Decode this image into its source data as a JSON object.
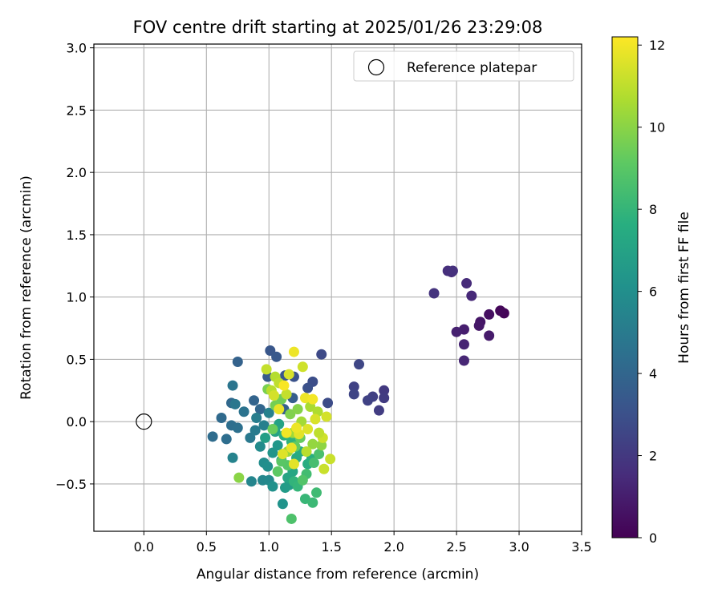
{
  "chart_data": {
    "type": "scatter",
    "title": "FOV centre drift starting at 2025/01/26 23:29:08",
    "xlabel": "Angular distance from reference (arcmin)",
    "ylabel": "Rotation from reference (arcmin)",
    "colorbar_label": "Hours from first FF file",
    "xlim": [
      -0.4,
      3.5
    ],
    "ylim": [
      -0.88,
      3.03
    ],
    "xticks": [
      "0.0",
      "0.5",
      "1.0",
      "1.5",
      "2.0",
      "2.5",
      "3.0",
      "3.5"
    ],
    "yticks": [
      "−0.5",
      "0.0",
      "0.5",
      "1.0",
      "1.5",
      "2.0",
      "2.5",
      "3.0"
    ],
    "colorbar_ticks": [
      "0",
      "2",
      "4",
      "6",
      "8",
      "10",
      "12"
    ],
    "colorbar_range": [
      0,
      12.2
    ],
    "colormap": "viridis",
    "grid": true,
    "legend": {
      "position": "top-right",
      "label": "Reference platepar"
    },
    "reference_point": {
      "x": 0.0,
      "y": 0.0
    },
    "points": [
      [
        2.88,
        0.87,
        0.1
      ],
      [
        2.85,
        0.89,
        0.2
      ],
      [
        2.76,
        0.86,
        0.5
      ],
      [
        2.69,
        0.8,
        0.7
      ],
      [
        2.68,
        0.77,
        0.8
      ],
      [
        2.76,
        0.69,
        0.9
      ],
      [
        2.56,
        0.74,
        1.0
      ],
      [
        2.5,
        0.72,
        1.1
      ],
      [
        2.56,
        0.62,
        1.2
      ],
      [
        2.56,
        0.49,
        1.3
      ],
      [
        2.62,
        1.01,
        1.4
      ],
      [
        2.58,
        1.11,
        1.5
      ],
      [
        2.46,
        1.2,
        1.5
      ],
      [
        2.43,
        1.21,
        1.6
      ],
      [
        2.47,
        1.21,
        1.7
      ],
      [
        2.32,
        1.03,
        1.8
      ],
      [
        1.92,
        0.25,
        2.0
      ],
      [
        1.92,
        0.19,
        2.1
      ],
      [
        1.88,
        0.09,
        2.2
      ],
      [
        1.83,
        0.2,
        2.3
      ],
      [
        1.79,
        0.17,
        2.4
      ],
      [
        1.68,
        0.28,
        2.4
      ],
      [
        1.68,
        0.22,
        2.5
      ],
      [
        1.72,
        0.46,
        2.6
      ],
      [
        1.42,
        0.54,
        2.7
      ],
      [
        1.47,
        0.15,
        2.8
      ],
      [
        1.35,
        0.32,
        2.9
      ],
      [
        1.31,
        0.27,
        3.0
      ],
      [
        1.2,
        0.36,
        3.1
      ],
      [
        1.13,
        0.37,
        3.2
      ],
      [
        1.01,
        0.57,
        3.3
      ],
      [
        1.06,
        0.52,
        3.4
      ],
      [
        0.99,
        0.36,
        3.5
      ],
      [
        1.19,
        0.19,
        3.6
      ],
      [
        1.12,
        0.1,
        3.7
      ],
      [
        0.75,
        0.48,
        3.8
      ],
      [
        0.88,
        0.17,
        3.9
      ],
      [
        0.93,
        0.1,
        4.0
      ],
      [
        0.7,
        0.15,
        4.1
      ],
      [
        0.62,
        0.03,
        4.2
      ],
      [
        0.55,
        -0.12,
        4.3
      ],
      [
        0.66,
        -0.14,
        4.4
      ],
      [
        0.7,
        -0.03,
        4.4
      ],
      [
        0.75,
        -0.05,
        4.5
      ],
      [
        0.8,
        0.08,
        4.6
      ],
      [
        0.71,
        0.29,
        4.7
      ],
      [
        0.73,
        0.14,
        4.8
      ],
      [
        0.85,
        -0.13,
        4.9
      ],
      [
        0.89,
        -0.07,
        5.0
      ],
      [
        0.9,
        0.03,
        5.1
      ],
      [
        0.96,
        -0.03,
        5.2
      ],
      [
        1.0,
        0.07,
        5.3
      ],
      [
        0.71,
        -0.29,
        5.4
      ],
      [
        0.86,
        -0.48,
        5.5
      ],
      [
        0.95,
        -0.47,
        5.6
      ],
      [
        1.0,
        -0.47,
        5.7
      ],
      [
        0.93,
        -0.2,
        5.8
      ],
      [
        0.96,
        -0.33,
        5.9
      ],
      [
        0.99,
        -0.36,
        6.0
      ],
      [
        1.03,
        -0.52,
        6.1
      ],
      [
        1.11,
        -0.66,
        6.2
      ],
      [
        1.03,
        -0.25,
        6.3
      ],
      [
        1.07,
        -0.19,
        6.4
      ],
      [
        1.1,
        -0.31,
        6.5
      ],
      [
        1.13,
        -0.53,
        6.6
      ],
      [
        1.16,
        -0.51,
        6.7
      ],
      [
        0.97,
        -0.13,
        6.8
      ],
      [
        1.05,
        -0.08,
        6.9
      ],
      [
        1.08,
        -0.02,
        7.0
      ],
      [
        1.15,
        -0.45,
        7.1
      ],
      [
        1.19,
        -0.4,
        7.2
      ],
      [
        1.22,
        -0.29,
        7.3
      ],
      [
        1.25,
        -0.24,
        7.4
      ],
      [
        1.31,
        -0.34,
        7.5
      ],
      [
        1.34,
        -0.3,
        7.6
      ],
      [
        1.12,
        -0.11,
        7.7
      ],
      [
        1.18,
        -0.16,
        7.8
      ],
      [
        1.2,
        -0.48,
        7.9
      ],
      [
        1.23,
        -0.52,
        8.0
      ],
      [
        1.29,
        -0.62,
        8.1
      ],
      [
        1.35,
        -0.65,
        8.2
      ],
      [
        1.38,
        -0.57,
        8.3
      ],
      [
        1.3,
        -0.42,
        8.4
      ],
      [
        1.36,
        -0.33,
        8.5
      ],
      [
        1.4,
        -0.26,
        8.6
      ],
      [
        1.18,
        -0.78,
        8.7
      ],
      [
        1.27,
        -0.47,
        8.8
      ],
      [
        1.15,
        -0.35,
        8.9
      ],
      [
        1.1,
        -0.32,
        9.0
      ],
      [
        1.07,
        -0.4,
        9.1
      ],
      [
        1.21,
        -0.2,
        9.2
      ],
      [
        1.25,
        -0.13,
        9.3
      ],
      [
        1.03,
        -0.06,
        9.4
      ],
      [
        1.1,
        0.18,
        9.5
      ],
      [
        1.05,
        0.13,
        9.6
      ],
      [
        0.99,
        0.26,
        9.7
      ],
      [
        1.17,
        0.06,
        9.8
      ],
      [
        1.23,
        0.1,
        9.9
      ],
      [
        0.76,
        -0.45,
        10.0
      ],
      [
        1.42,
        -0.19,
        10.1
      ],
      [
        1.35,
        -0.18,
        10.2
      ],
      [
        1.15,
        -0.24,
        10.3
      ],
      [
        1.19,
        -0.09,
        10.4
      ],
      [
        1.26,
        0.0,
        10.5
      ],
      [
        1.33,
        0.12,
        10.6
      ],
      [
        1.39,
        0.08,
        10.7
      ],
      [
        1.05,
        0.36,
        10.8
      ],
      [
        1.02,
        0.25,
        10.9
      ],
      [
        1.08,
        0.31,
        11.0
      ],
      [
        1.14,
        0.22,
        11.1
      ],
      [
        1.44,
        -0.38,
        11.2
      ],
      [
        1.49,
        -0.3,
        11.2
      ],
      [
        1.43,
        -0.13,
        11.3
      ],
      [
        1.46,
        0.04,
        11.4
      ],
      [
        1.37,
        0.02,
        11.5
      ],
      [
        1.31,
        -0.06,
        11.6
      ],
      [
        1.24,
        -0.1,
        11.7
      ],
      [
        1.18,
        -0.21,
        11.8
      ],
      [
        1.29,
        0.19,
        11.9
      ],
      [
        1.35,
        0.18,
        12.0
      ],
      [
        0.98,
        0.42,
        11.1
      ],
      [
        1.27,
        0.44,
        11.3
      ],
      [
        1.16,
        0.38,
        11.5
      ],
      [
        1.2,
        0.56,
        11.9
      ],
      [
        1.11,
        -0.26,
        11.6
      ],
      [
        1.2,
        -0.34,
        11.7
      ],
      [
        1.08,
        0.1,
        11.8
      ],
      [
        1.12,
        0.29,
        12.1
      ],
      [
        1.04,
        0.21,
        11.4
      ],
      [
        1.4,
        -0.09,
        11.0
      ],
      [
        1.22,
        -0.05,
        11.9
      ],
      [
        1.3,
        -0.24,
        10.9
      ],
      [
        1.14,
        -0.09,
        12.0
      ]
    ]
  }
}
